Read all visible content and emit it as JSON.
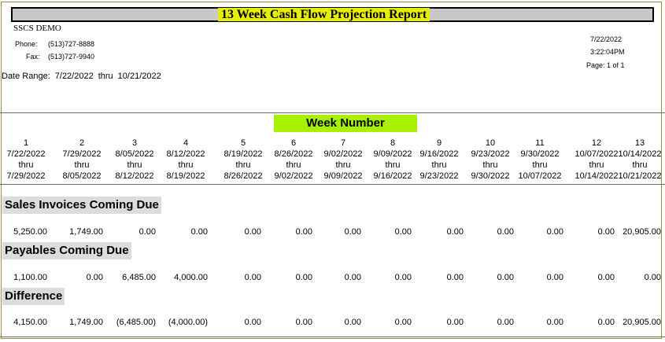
{
  "report": {
    "title": "13 Week Cash Flow Projection Report",
    "company": "SSCS DEMO",
    "phone_label": "Phone:",
    "phone": "(513)727-8888",
    "fax_label": "Fax:",
    "fax": "(513)727-9940",
    "date": "7/22/2022",
    "time": "3:22:04PM",
    "page": "Page: 1 of 1",
    "date_range_label": "Date Range:",
    "date_from": "7/22/2022",
    "thru_label": "thru",
    "date_to": "10/21/2022"
  },
  "week_header": "Week Number",
  "weeks": [
    {
      "num": "1",
      "start": "7/22/2022",
      "thru": "thru",
      "end": "7/29/2022"
    },
    {
      "num": "2",
      "start": "7/29/2022",
      "thru": "thru",
      "end": "8/05/2022"
    },
    {
      "num": "3",
      "start": "8/05/2022",
      "thru": "thru",
      "end": "8/12/2022"
    },
    {
      "num": "4",
      "start": "8/12/2022",
      "thru": "thru",
      "end": "8/19/2022"
    },
    {
      "num": "5",
      "start": "8/19/2022",
      "thru": "thru",
      "end": "8/26/2022"
    },
    {
      "num": "6",
      "start": "8/26/2022",
      "thru": "thru",
      "end": "9/02/2022"
    },
    {
      "num": "7",
      "start": "9/02/2022",
      "thru": "thru",
      "end": "9/09/2022"
    },
    {
      "num": "8",
      "start": "9/09/2022",
      "thru": "thru",
      "end": "9/16/2022"
    },
    {
      "num": "9",
      "start": "9/16/2022",
      "thru": "thru",
      "end": "9/23/2022"
    },
    {
      "num": "10",
      "start": "9/23/2022",
      "thru": "thru",
      "end": "9/30/2022"
    },
    {
      "num": "11",
      "start": "9/30/2022",
      "thru": "thru",
      "end": "10/07/2022"
    },
    {
      "num": "12",
      "start": "10/07/2022",
      "thru": "thru",
      "end": "10/14/2022"
    },
    {
      "num": "13",
      "start": "10/14/2022",
      "thru": "thru",
      "end": "10/21/2022"
    }
  ],
  "sections": [
    {
      "title": "Sales Invoices Coming Due",
      "values": [
        "5,250.00",
        "1,749.00",
        "0.00",
        "0.00",
        "0.00",
        "0.00",
        "0.00",
        "0.00",
        "0.00",
        "0.00",
        "0.00",
        "0.00",
        "20,905.00"
      ]
    },
    {
      "title": "Payables Coming Due",
      "values": [
        "1,100.00",
        "0.00",
        "6,485.00",
        "4,000.00",
        "0.00",
        "0.00",
        "0.00",
        "0.00",
        "0.00",
        "0.00",
        "0.00",
        "0.00",
        "0.00"
      ]
    },
    {
      "title": "Difference",
      "values": [
        "4,150.00",
        "1,749.00",
        "(6,485.00)",
        "(4,000.00)",
        "0.00",
        "0.00",
        "0.00",
        "0.00",
        "0.00",
        "0.00",
        "0.00",
        "0.00",
        "20,905.00"
      ]
    }
  ]
}
